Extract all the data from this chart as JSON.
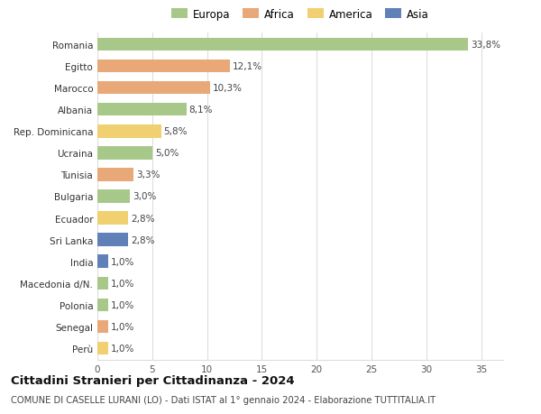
{
  "categories": [
    "Romania",
    "Egitto",
    "Marocco",
    "Albania",
    "Rep. Dominicana",
    "Ucraina",
    "Tunisia",
    "Bulgaria",
    "Ecuador",
    "Sri Lanka",
    "India",
    "Macedonia d/N.",
    "Polonia",
    "Senegal",
    "Perù"
  ],
  "values": [
    33.8,
    12.1,
    10.3,
    8.1,
    5.8,
    5.0,
    3.3,
    3.0,
    2.8,
    2.8,
    1.0,
    1.0,
    1.0,
    1.0,
    1.0
  ],
  "labels": [
    "33,8%",
    "12,1%",
    "10,3%",
    "8,1%",
    "5,8%",
    "5,0%",
    "3,3%",
    "3,0%",
    "2,8%",
    "2,8%",
    "1,0%",
    "1,0%",
    "1,0%",
    "1,0%",
    "1,0%"
  ],
  "continents": [
    "Europa",
    "Africa",
    "Africa",
    "Europa",
    "America",
    "Europa",
    "Africa",
    "Europa",
    "America",
    "Asia",
    "Asia",
    "Europa",
    "Europa",
    "Africa",
    "America"
  ],
  "colors": {
    "Europa": "#a8c88a",
    "Africa": "#e8a878",
    "America": "#f0d070",
    "Asia": "#6080b8"
  },
  "legend_order": [
    "Europa",
    "Africa",
    "America",
    "Asia"
  ],
  "xlim": [
    0,
    37
  ],
  "xticks": [
    0,
    5,
    10,
    15,
    20,
    25,
    30,
    35
  ],
  "title": "Cittadini Stranieri per Cittadinanza - 2024",
  "subtitle": "COMUNE DI CASELLE LURANI (LO) - Dati ISTAT al 1° gennaio 2024 - Elaborazione TUTTITALIA.IT",
  "bg_color": "#ffffff",
  "grid_color": "#dddddd",
  "bar_height": 0.6,
  "title_fontsize": 9.5,
  "subtitle_fontsize": 7.2,
  "label_fontsize": 7.5,
  "tick_fontsize": 7.5,
  "legend_fontsize": 8.5
}
